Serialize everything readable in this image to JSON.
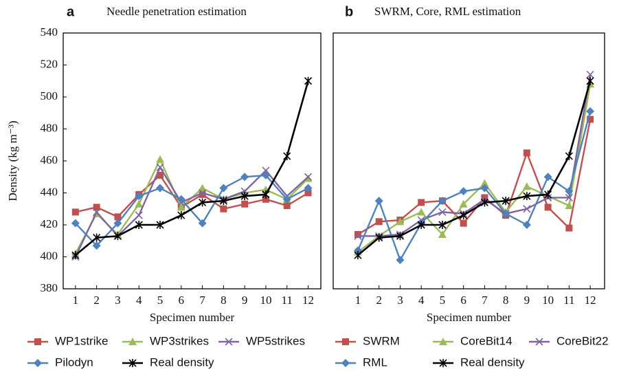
{
  "chart_data": [
    {
      "type": "line",
      "panel": "a",
      "title": "Needle penetration estimation",
      "xlabel": "Specimen number",
      "ylabel": "Density (kg m⁻³)",
      "x": [
        1,
        2,
        3,
        4,
        5,
        6,
        7,
        8,
        9,
        10,
        11,
        12
      ],
      "xlim": [
        0.42,
        12.6
      ],
      "xticks": [
        1,
        2,
        3,
        4,
        5,
        6,
        7,
        8,
        9,
        10,
        11,
        12
      ],
      "ylim": [
        380,
        540
      ],
      "yticks": [
        380,
        400,
        420,
        440,
        460,
        480,
        500,
        520,
        540
      ],
      "grid": false,
      "series": [
        {
          "name": "WP1strike",
          "color": "#c0504d",
          "marker": "square",
          "values": [
            428,
            431,
            425,
            439,
            451,
            431,
            439,
            430,
            433,
            436,
            432,
            440
          ]
        },
        {
          "name": "WP3strikes",
          "color": "#9bbb59",
          "marker": "triangle",
          "values": [
            402,
            427,
            414,
            433,
            461,
            431,
            443,
            436,
            440,
            442,
            436,
            449
          ]
        },
        {
          "name": "WP5strikes",
          "color": "#8064a2",
          "marker": "x",
          "values": [
            400,
            428,
            413,
            426,
            456,
            434,
            440,
            436,
            441,
            454,
            438,
            450
          ]
        },
        {
          "name": "Pilodyn",
          "color": "#4f81bd",
          "marker": "diamond",
          "values": [
            421,
            407,
            421,
            438,
            443,
            436,
            421,
            443,
            450,
            451,
            436,
            443
          ]
        },
        {
          "name": "Real density",
          "color": "#000000",
          "marker": "star",
          "values": [
            401,
            412,
            413,
            420,
            420,
            426,
            434,
            435,
            438,
            439,
            463,
            510
          ]
        }
      ]
    },
    {
      "type": "line",
      "panel": "b",
      "title": "SWRM, Core, RML estimation",
      "xlabel": "Specimen number",
      "x": [
        1,
        2,
        3,
        4,
        5,
        6,
        7,
        8,
        9,
        10,
        11,
        12
      ],
      "xlim": [
        -0.17,
        12.68
      ],
      "xticks": [
        1,
        2,
        3,
        4,
        5,
        6,
        7,
        8,
        9,
        10,
        11,
        12
      ],
      "ylim": [
        380,
        540
      ],
      "grid": false,
      "series": [
        {
          "name": "SWRM",
          "color": "#c0504d",
          "marker": "square",
          "values": [
            414,
            422,
            423,
            434,
            435,
            421,
            437,
            426,
            465,
            431,
            418,
            486
          ]
        },
        {
          "name": "CoreBit14",
          "color": "#9bbb59",
          "marker": "triangle",
          "values": [
            403,
            413,
            422,
            428,
            414,
            433,
            446,
            428,
            444,
            438,
            432,
            508
          ]
        },
        {
          "name": "CoreBit22",
          "color": "#8064a2",
          "marker": "x",
          "values": [
            413,
            413,
            414,
            423,
            428,
            427,
            436,
            427,
            430,
            437,
            437,
            514
          ]
        },
        {
          "name": "RML",
          "color": "#4f81bd",
          "marker": "diamond",
          "values": [
            404,
            435,
            398,
            421,
            435,
            441,
            443,
            427,
            420,
            450,
            441,
            491
          ]
        },
        {
          "name": "Real density",
          "color": "#000000",
          "marker": "star",
          "values": [
            401,
            412,
            413,
            420,
            420,
            426,
            434,
            435,
            438,
            439,
            463,
            510
          ]
        }
      ]
    }
  ]
}
